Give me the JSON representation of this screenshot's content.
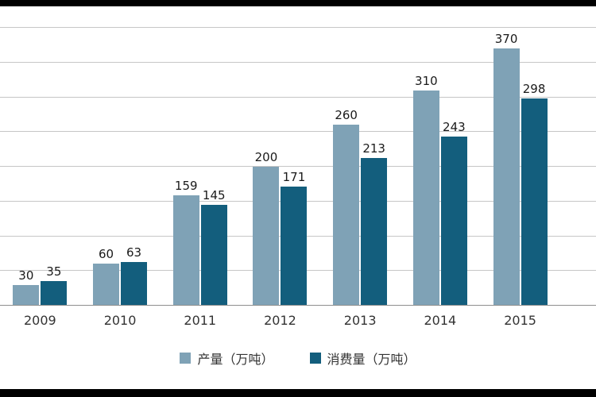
{
  "chart_data": {
    "type": "bar",
    "title": "",
    "xlabel": "",
    "ylabel": "",
    "categories": [
      "2009",
      "2010",
      "2011",
      "2012",
      "2013",
      "2014",
      "2015"
    ],
    "series": [
      {
        "key": "production",
        "name": "产量（万吨）",
        "color": "#7fa2b6",
        "values": [
          30,
          60,
          159,
          200,
          260,
          310,
          370
        ]
      },
      {
        "key": "consumption",
        "name": "消费量（万吨）",
        "color": "#135e7d",
        "values": [
          35,
          63,
          145,
          171,
          213,
          243,
          298
        ]
      }
    ],
    "ylim": [
      0,
      400
    ],
    "gridline_step": 50,
    "grid": true,
    "legend_position": "bottom"
  },
  "legend": {
    "items": [
      {
        "label": "产量（万吨）",
        "color": "#7fa2b6"
      },
      {
        "label": "消费量（万吨）",
        "color": "#135e7d"
      }
    ]
  }
}
